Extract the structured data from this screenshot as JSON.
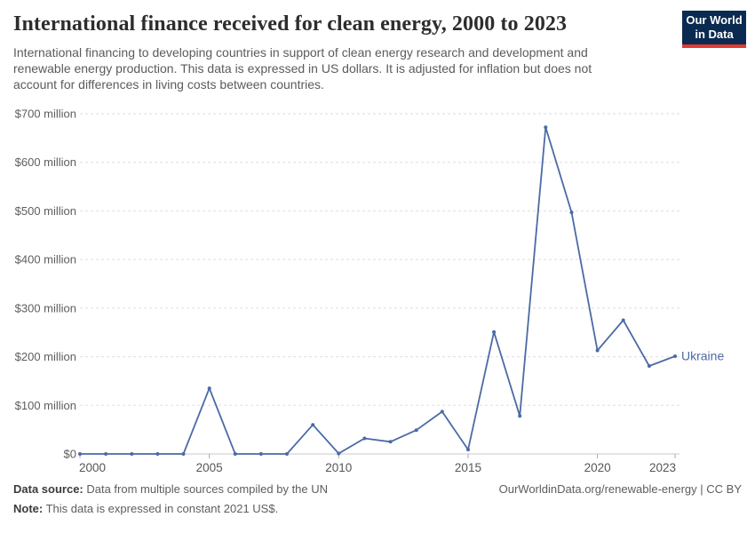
{
  "header": {
    "title": "International finance received for clean energy, 2000 to 2023",
    "subtitle": "International financing to developing countries in support of clean energy research and development and renewable energy production. This data is expressed in US dollars. It is adjusted for inflation but does not account for differences in living costs between countries.",
    "logo": {
      "line1": "Our World",
      "line2": "in Data",
      "bg_color": "#0b2a51",
      "stripe_color": "#e23a31"
    }
  },
  "chart_data": {
    "type": "line",
    "title": "International finance received for clean energy, 2000 to 2023",
    "x": [
      2000,
      2001,
      2002,
      2003,
      2004,
      2005,
      2006,
      2007,
      2008,
      2009,
      2010,
      2011,
      2012,
      2013,
      2014,
      2015,
      2016,
      2017,
      2018,
      2019,
      2020,
      2021,
      2022,
      2023
    ],
    "series": [
      {
        "name": "Ukraine",
        "color": "#4b6aa5",
        "values": [
          0,
          0,
          0,
          0,
          0,
          135,
          0,
          0,
          0,
          60,
          1,
          32,
          25,
          49,
          87,
          9,
          251,
          78,
          672,
          497,
          213,
          275,
          181,
          201
        ]
      }
    ],
    "xlabel": "",
    "ylabel": "",
    "ylim": [
      0,
      700
    ],
    "yticks": [
      0,
      100,
      200,
      300,
      400,
      500,
      600,
      700
    ],
    "ytick_labels": [
      "$0",
      "$100 million",
      "$200 million",
      "$300 million",
      "$400 million",
      "$500 million",
      "$600 million",
      "$700 million"
    ],
    "xticks": [
      2000,
      2005,
      2010,
      2015,
      2020,
      2023
    ],
    "grid": "horizontal-dashed",
    "legend_position": "end-of-line"
  },
  "footer": {
    "datasource_label": "Data source:",
    "datasource_text": " Data from multiple sources compiled by the UN",
    "note_label": "Note:",
    "note_text": " This data is expressed in constant 2021 US$.",
    "right_text": "OurWorldinData.org/renewable-energy | CC BY"
  }
}
